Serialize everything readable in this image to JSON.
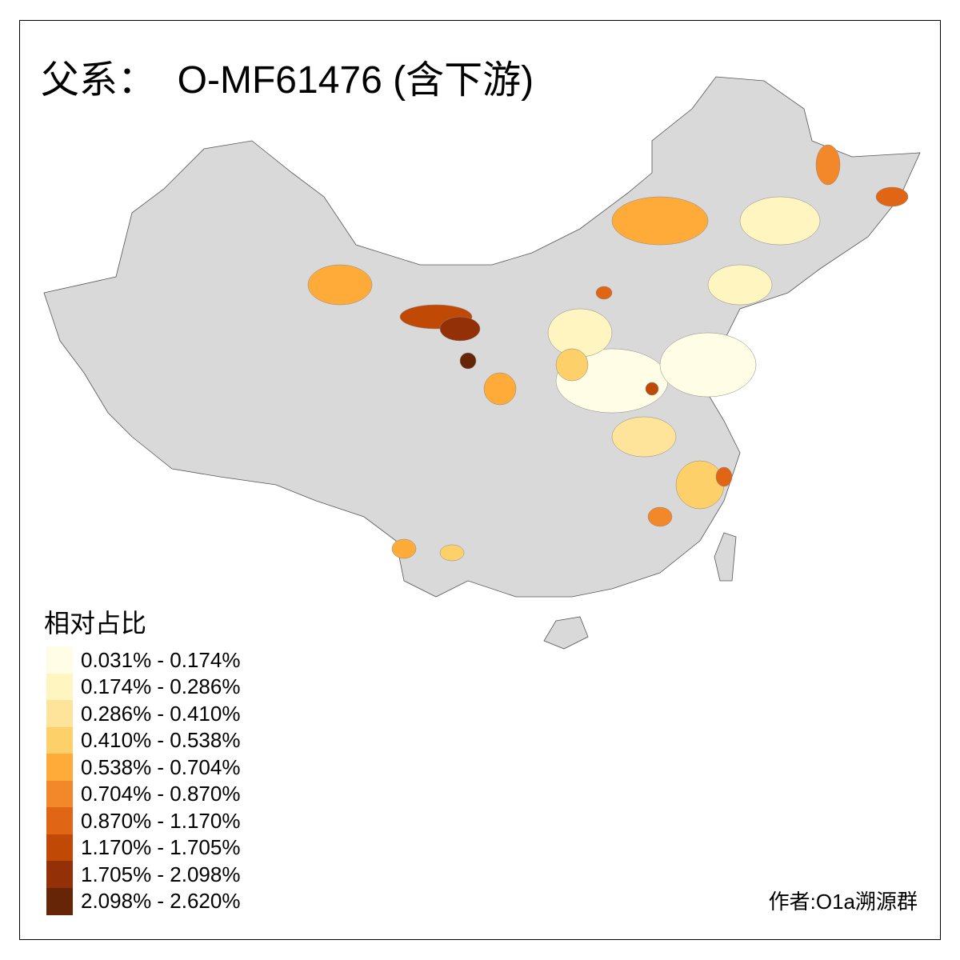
{
  "title": "父系：  O-MF61476 (含下游)",
  "legend": {
    "title": "相对占比",
    "classes": [
      {
        "label": "0.031% - 0.174%",
        "color": "#fffde6"
      },
      {
        "label": "0.174% - 0.286%",
        "color": "#fff5c0"
      },
      {
        "label": "0.286% - 0.410%",
        "color": "#fee49a"
      },
      {
        "label": "0.410% - 0.538%",
        "color": "#fed06a"
      },
      {
        "label": "0.538% - 0.704%",
        "color": "#feab3a"
      },
      {
        "label": "0.704% - 0.870%",
        "color": "#f3882a"
      },
      {
        "label": "0.870% - 1.170%",
        "color": "#e06515"
      },
      {
        "label": "1.170% - 1.705%",
        "color": "#c04a05"
      },
      {
        "label": "1.705% - 2.098%",
        "color": "#933008"
      },
      {
        "label": "2.098% - 2.620%",
        "color": "#662506"
      }
    ],
    "no_data_color": "#d9d9d9"
  },
  "author": "作者:O1a溯源群"
}
